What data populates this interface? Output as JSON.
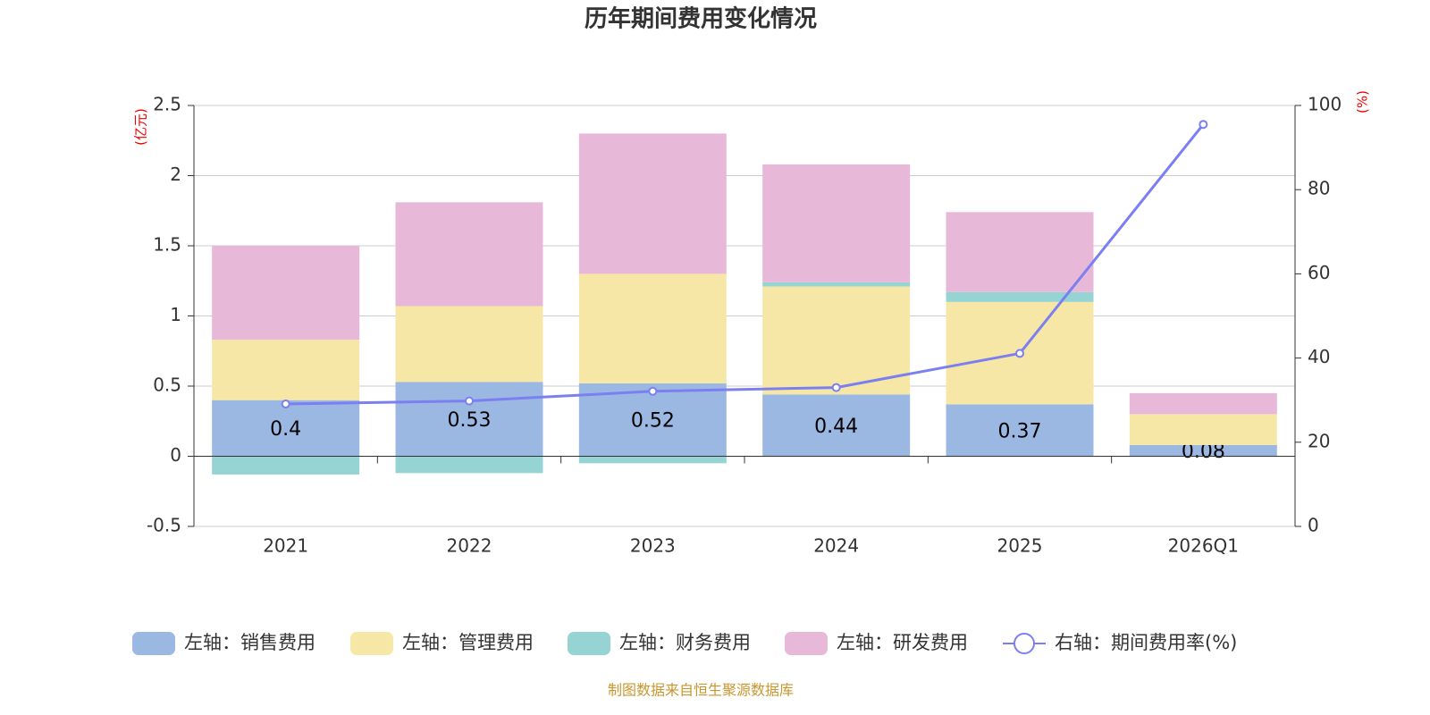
{
  "chart_data": {
    "type": "bar",
    "title": "历年期间费用变化情况",
    "y_label": "(亿元)",
    "y2_label": "(%)",
    "categories": [
      "2021",
      "2022",
      "2023",
      "2024",
      "2025",
      "2026Q1"
    ],
    "series": [
      {
        "name": "左轴：销售费用",
        "color": "#9bb8e3",
        "values": [
          0.4,
          0.53,
          0.52,
          0.44,
          0.37,
          0.08
        ],
        "show_labels": true
      },
      {
        "name": "左轴：管理费用",
        "color": "#f7e7a6",
        "values": [
          0.43,
          0.54,
          0.78,
          0.77,
          0.73,
          0.22
        ]
      },
      {
        "name": "左轴：财务费用",
        "color": "#96d4d4",
        "values": [
          -0.13,
          -0.12,
          -0.05,
          0.03,
          0.07,
          0
        ]
      },
      {
        "name": "左轴：研发费用",
        "color": "#e8b8d8",
        "values": [
          0.67,
          0.74,
          1.0,
          0.84,
          0.57,
          0.15
        ]
      },
      {
        "name": "右轴：期间费用率(%)",
        "color": "#7b7ff0",
        "type": "line",
        "axis": "y2",
        "values": [
          29.1,
          29.8,
          32.1,
          33.0,
          41.1,
          95.5
        ]
      }
    ],
    "ylim": [
      -0.5,
      2.5
    ],
    "yticks": [
      -0.5,
      0,
      0.5,
      1,
      1.5,
      2,
      2.5
    ],
    "y2lim": [
      0,
      100
    ],
    "y2ticks": [
      0,
      20,
      40,
      60,
      80,
      100
    ],
    "grid": true,
    "legend": "bottom",
    "source": "制图数据来自恒生聚源数据库"
  }
}
